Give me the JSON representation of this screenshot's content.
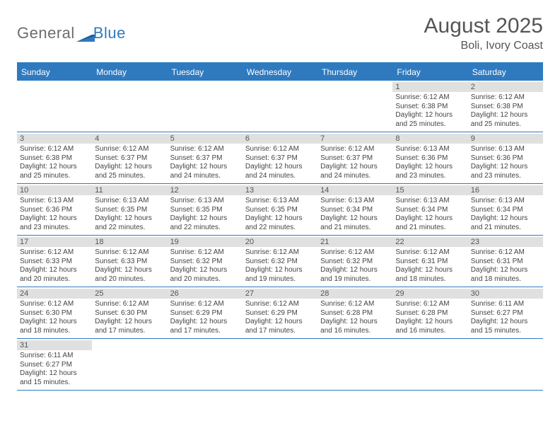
{
  "logo": {
    "word1": "General",
    "word2": "Blue",
    "color_gray": "#6d6d6d",
    "color_blue": "#2f7abf"
  },
  "header": {
    "title": "August 2025",
    "subtitle": "Boli, Ivory Coast"
  },
  "colors": {
    "accent": "#2f7abf",
    "daynum_bg": "#e0e0e0",
    "text": "#444444"
  },
  "daynames": [
    "Sunday",
    "Monday",
    "Tuesday",
    "Wednesday",
    "Thursday",
    "Friday",
    "Saturday"
  ],
  "calendar": {
    "first_weekday_index": 5,
    "days": [
      {
        "n": 1,
        "sunrise": "6:12 AM",
        "sunset": "6:38 PM",
        "dl_h": 12,
        "dl_m": 25
      },
      {
        "n": 2,
        "sunrise": "6:12 AM",
        "sunset": "6:38 PM",
        "dl_h": 12,
        "dl_m": 25
      },
      {
        "n": 3,
        "sunrise": "6:12 AM",
        "sunset": "6:38 PM",
        "dl_h": 12,
        "dl_m": 25
      },
      {
        "n": 4,
        "sunrise": "6:12 AM",
        "sunset": "6:37 PM",
        "dl_h": 12,
        "dl_m": 25
      },
      {
        "n": 5,
        "sunrise": "6:12 AM",
        "sunset": "6:37 PM",
        "dl_h": 12,
        "dl_m": 24
      },
      {
        "n": 6,
        "sunrise": "6:12 AM",
        "sunset": "6:37 PM",
        "dl_h": 12,
        "dl_m": 24
      },
      {
        "n": 7,
        "sunrise": "6:12 AM",
        "sunset": "6:37 PM",
        "dl_h": 12,
        "dl_m": 24
      },
      {
        "n": 8,
        "sunrise": "6:13 AM",
        "sunset": "6:36 PM",
        "dl_h": 12,
        "dl_m": 23
      },
      {
        "n": 9,
        "sunrise": "6:13 AM",
        "sunset": "6:36 PM",
        "dl_h": 12,
        "dl_m": 23
      },
      {
        "n": 10,
        "sunrise": "6:13 AM",
        "sunset": "6:36 PM",
        "dl_h": 12,
        "dl_m": 23
      },
      {
        "n": 11,
        "sunrise": "6:13 AM",
        "sunset": "6:35 PM",
        "dl_h": 12,
        "dl_m": 22
      },
      {
        "n": 12,
        "sunrise": "6:13 AM",
        "sunset": "6:35 PM",
        "dl_h": 12,
        "dl_m": 22
      },
      {
        "n": 13,
        "sunrise": "6:13 AM",
        "sunset": "6:35 PM",
        "dl_h": 12,
        "dl_m": 22
      },
      {
        "n": 14,
        "sunrise": "6:13 AM",
        "sunset": "6:34 PM",
        "dl_h": 12,
        "dl_m": 21
      },
      {
        "n": 15,
        "sunrise": "6:13 AM",
        "sunset": "6:34 PM",
        "dl_h": 12,
        "dl_m": 21
      },
      {
        "n": 16,
        "sunrise": "6:13 AM",
        "sunset": "6:34 PM",
        "dl_h": 12,
        "dl_m": 21
      },
      {
        "n": 17,
        "sunrise": "6:12 AM",
        "sunset": "6:33 PM",
        "dl_h": 12,
        "dl_m": 20
      },
      {
        "n": 18,
        "sunrise": "6:12 AM",
        "sunset": "6:33 PM",
        "dl_h": 12,
        "dl_m": 20
      },
      {
        "n": 19,
        "sunrise": "6:12 AM",
        "sunset": "6:32 PM",
        "dl_h": 12,
        "dl_m": 20
      },
      {
        "n": 20,
        "sunrise": "6:12 AM",
        "sunset": "6:32 PM",
        "dl_h": 12,
        "dl_m": 19
      },
      {
        "n": 21,
        "sunrise": "6:12 AM",
        "sunset": "6:32 PM",
        "dl_h": 12,
        "dl_m": 19
      },
      {
        "n": 22,
        "sunrise": "6:12 AM",
        "sunset": "6:31 PM",
        "dl_h": 12,
        "dl_m": 18
      },
      {
        "n": 23,
        "sunrise": "6:12 AM",
        "sunset": "6:31 PM",
        "dl_h": 12,
        "dl_m": 18
      },
      {
        "n": 24,
        "sunrise": "6:12 AM",
        "sunset": "6:30 PM",
        "dl_h": 12,
        "dl_m": 18
      },
      {
        "n": 25,
        "sunrise": "6:12 AM",
        "sunset": "6:30 PM",
        "dl_h": 12,
        "dl_m": 17
      },
      {
        "n": 26,
        "sunrise": "6:12 AM",
        "sunset": "6:29 PM",
        "dl_h": 12,
        "dl_m": 17
      },
      {
        "n": 27,
        "sunrise": "6:12 AM",
        "sunset": "6:29 PM",
        "dl_h": 12,
        "dl_m": 17
      },
      {
        "n": 28,
        "sunrise": "6:12 AM",
        "sunset": "6:28 PM",
        "dl_h": 12,
        "dl_m": 16
      },
      {
        "n": 29,
        "sunrise": "6:12 AM",
        "sunset": "6:28 PM",
        "dl_h": 12,
        "dl_m": 16
      },
      {
        "n": 30,
        "sunrise": "6:11 AM",
        "sunset": "6:27 PM",
        "dl_h": 12,
        "dl_m": 15
      },
      {
        "n": 31,
        "sunrise": "6:11 AM",
        "sunset": "6:27 PM",
        "dl_h": 12,
        "dl_m": 15
      }
    ]
  },
  "labels": {
    "sunrise_prefix": "Sunrise: ",
    "sunset_prefix": "Sunset: ",
    "daylight_prefix": "Daylight: ",
    "hours_word": " hours",
    "and_word": "and ",
    "minutes_word": " minutes."
  }
}
